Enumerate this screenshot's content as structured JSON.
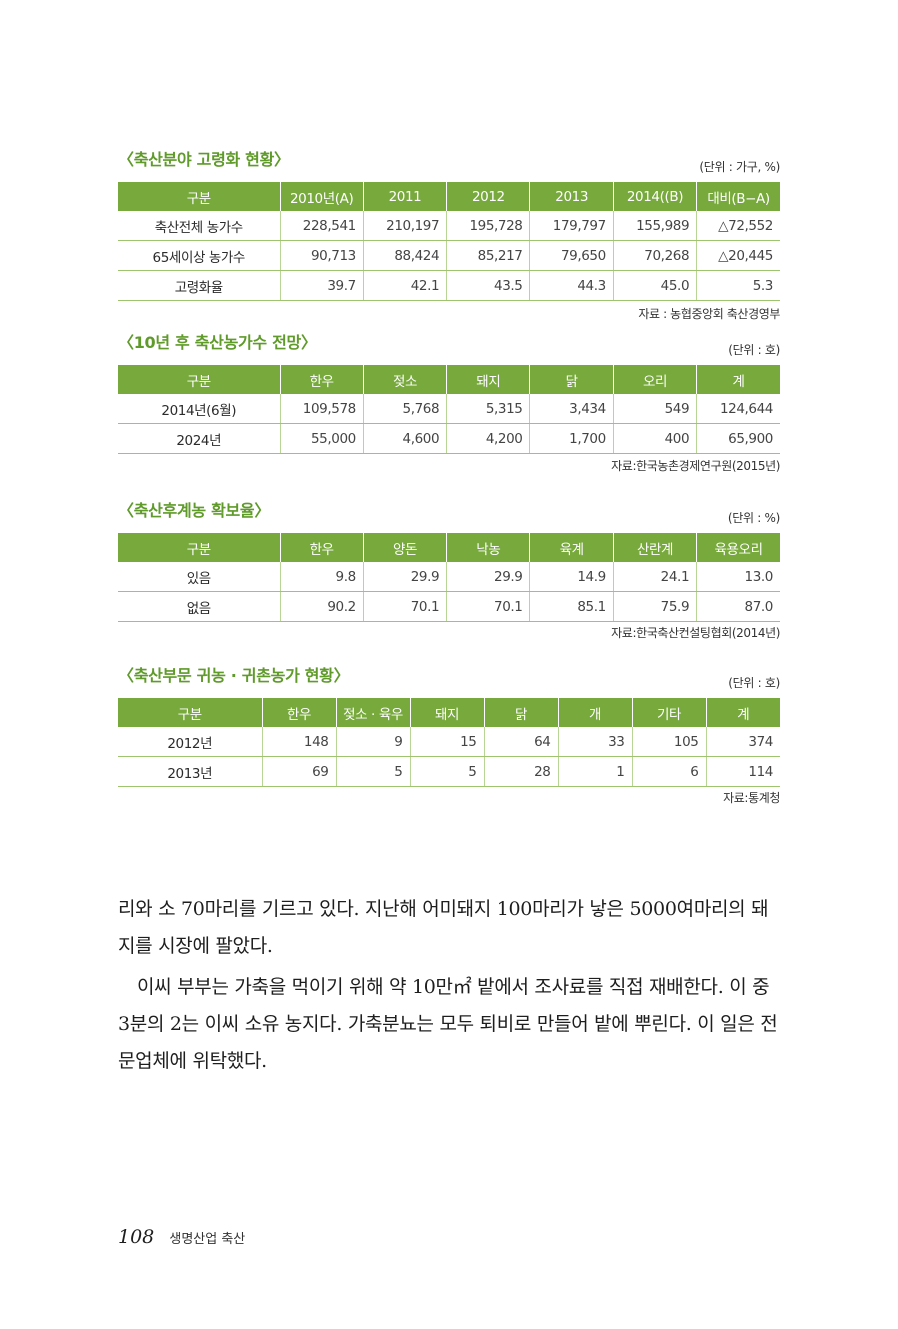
{
  "tables": [
    {
      "title": "〈축산분야 고령화 현황〉",
      "unit": "(단위 : 가구, %)",
      "headers": [
        "구분",
        "2010년(A)",
        "2011",
        "2012",
        "2013",
        "2014((B)",
        "대비(B−A)"
      ],
      "rows": [
        [
          "축산전체 농가수",
          "228,541",
          "210,197",
          "195,728",
          "179,797",
          "155,989",
          "△72,552"
        ],
        [
          "65세이상 농가수",
          "90,713",
          "88,424",
          "85,217",
          "79,650",
          "70,268",
          "△20,445"
        ],
        [
          "고령화율",
          "39.7",
          "42.1",
          "43.5",
          "44.3",
          "45.0",
          "5.3"
        ]
      ],
      "source": "자료 : 농협중앙회 축산경영부"
    },
    {
      "title": "〈10년 후 축산농가수 전망〉",
      "unit": "(단위 : 호)",
      "headers": [
        "구분",
        "한우",
        "젖소",
        "돼지",
        "닭",
        "오리",
        "계"
      ],
      "rows": [
        [
          "2014년(6월)",
          "109,578",
          "5,768",
          "5,315",
          "3,434",
          "549",
          "124,644"
        ],
        [
          "2024년",
          "55,000",
          "4,600",
          "4,200",
          "1,700",
          "400",
          "65,900"
        ]
      ],
      "source": "자료:한국농촌경제연구원(2015년)"
    },
    {
      "title": "〈축산후계농 확보율〉",
      "unit": "(단위 : %)",
      "headers": [
        "구분",
        "한우",
        "양돈",
        "낙농",
        "육계",
        "산란계",
        "육용오리"
      ],
      "rows": [
        [
          "있음",
          "9.8",
          "29.9",
          "29.9",
          "14.9",
          "24.1",
          "13.0"
        ],
        [
          "없음",
          "90.2",
          "70.1",
          "70.1",
          "85.1",
          "75.9",
          "87.0"
        ]
      ],
      "source": "자료:한국축산컨설팅협회(2014년)"
    },
    {
      "title": "〈축산부문 귀농 · 귀촌농가 현황〉",
      "unit": "(단위 : 호)",
      "headers": [
        "구분",
        "한우",
        "젖소 · 육우",
        "돼지",
        "닭",
        "개",
        "기타",
        "계"
      ],
      "rows": [
        [
          "2012년",
          "148",
          "9",
          "15",
          "64",
          "33",
          "105",
          "374"
        ],
        [
          "2013년",
          "69",
          "5",
          "5",
          "28",
          "1",
          "6",
          "114"
        ]
      ],
      "source": "자료:통계청"
    }
  ],
  "body": {
    "paragraphs": [
      "리와 소 70마리를 기르고 있다. 지난해 어미돼지 100마리가 낳은 5000여마리의 돼지를 시장에 팔았다.",
      "이씨 부부는 가축을 먹이기 위해 약 10만㎡ 밭에서 조사료를 직접 재배한다. 이 중 3분의 2는 이씨 소유 농지다. 가축분뇨는 모두 퇴비로 만들어 밭에 뿌린다. 이 일은 전문업체에 위탁했다."
    ]
  },
  "footer": {
    "page_number": "108",
    "book_title": "생명산업 축산"
  }
}
